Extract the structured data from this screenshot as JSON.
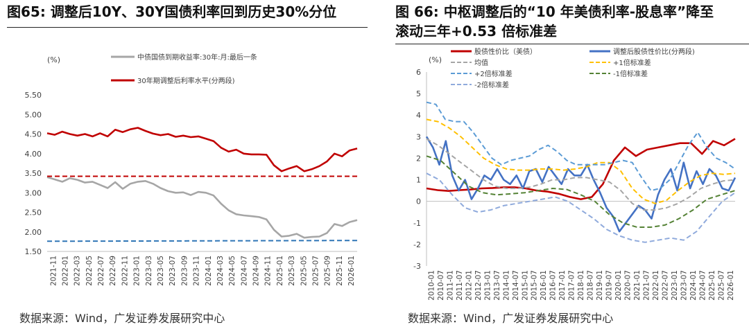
{
  "left": {
    "title": "图65:  调整后10Y、30Y国债利率回到历史30%分位",
    "source": "数据来源：Wind，广发证券发展研究中心"
  },
  "right": {
    "title_line1": "图 66:  中枢调整后的“10 年美债利率-股息率”降至",
    "title_line2": "滚动三年+0.53 倍标准差",
    "source": "数据来源：Wind，广发证券发展研究中心"
  },
  "colors": {
    "gray": "#a6a6a6",
    "red": "#c00000",
    "blue": "#4472c4",
    "dashBlue": "#2e75b6",
    "lightGray": "#a5a5a5",
    "orange": "#ffc000",
    "lightBlue": "#5b9bd5",
    "green": "#548235",
    "paleBlue": "#8faadc"
  },
  "chart_data": [
    {
      "type": "line",
      "unit": "(%)",
      "ylim": [
        1.5,
        5.5
      ],
      "yticks": [
        "1.50",
        "2.00",
        "2.50",
        "3.00",
        "3.50",
        "4.00",
        "4.50",
        "5.00",
        "5.50"
      ],
      "x_labels": [
        "2021-11",
        "2022-01",
        "2022-03",
        "2022-05",
        "2022-07",
        "2022-09",
        "2022-11",
        "2023-01",
        "2023-03",
        "2023-05",
        "2023-07",
        "2023-09",
        "2023-11",
        "2024-01",
        "2024-03",
        "2024-05",
        "2024-07",
        "2024-09",
        "2024-11",
        "2025-01",
        "2025-03",
        "2025-05",
        "2025-07",
        "2025-09",
        "2025-11",
        "2026-01"
      ],
      "series": [
        {
          "name": "中债国债到期收益率:30年:月:最后一条",
          "style": "solid",
          "color": "#a6a6a6",
          "values": [
            3.4,
            3.34,
            3.28,
            3.37,
            3.33,
            3.26,
            3.28,
            3.2,
            3.12,
            3.27,
            3.1,
            3.23,
            3.28,
            3.3,
            3.23,
            3.12,
            3.04,
            3.0,
            3.01,
            2.94,
            3.02,
            3.0,
            2.93,
            2.72,
            2.55,
            2.45,
            2.42,
            2.4,
            2.38,
            2.32,
            2.05,
            1.88,
            1.9,
            1.95,
            1.85,
            1.87,
            1.88,
            1.97,
            2.2,
            2.15,
            2.25,
            2.3
          ]
        },
        {
          "name": "30年期调整后利率水平(分两段)",
          "style": "solid",
          "color": "#c00000",
          "values": [
            4.52,
            4.48,
            4.56,
            4.5,
            4.46,
            4.5,
            4.44,
            4.52,
            4.44,
            4.61,
            4.55,
            4.62,
            4.66,
            4.58,
            4.51,
            4.47,
            4.5,
            4.43,
            4.46,
            4.42,
            4.44,
            4.38,
            4.32,
            4.15,
            4.05,
            4.1,
            4.0,
            3.98,
            3.98,
            3.97,
            3.7,
            3.55,
            3.62,
            3.68,
            3.55,
            3.6,
            3.68,
            3.8,
            4.0,
            3.93,
            4.08,
            4.13
          ]
        },
        {
          "name": "",
          "style": "dashed",
          "color": "#c00000",
          "values": [
            3.42,
            3.42
          ]
        },
        {
          "name": "",
          "style": "dashed",
          "color": "#2e75b6",
          "values": [
            1.76,
            1.78
          ]
        }
      ]
    },
    {
      "type": "line",
      "unit": "(%)",
      "ylim": [
        -3,
        6
      ],
      "yticks": [
        "-3",
        "-2",
        "-1",
        "0",
        "1",
        "2",
        "3",
        "4",
        "5",
        "6"
      ],
      "x_labels": [
        "2010-01",
        "2010-07",
        "2011-01",
        "2011-07",
        "2012-01",
        "2012-07",
        "2013-01",
        "2013-07",
        "2014-01",
        "2014-07",
        "2015-01",
        "2015-07",
        "2016-01",
        "2016-07",
        "2017-01",
        "2017-07",
        "2018-01",
        "2018-07",
        "2019-01",
        "2019-07",
        "2020-01",
        "2020-07",
        "2021-01",
        "2021-07",
        "2022-01",
        "2022-07",
        "2023-01",
        "2023-07",
        "2024-01",
        "2024-07",
        "2025-01",
        "2025-07",
        "2026-01"
      ],
      "series": [
        {
          "name": "股债性价比（美债）",
          "style": "solid",
          "color": "#c00000",
          "values": [
            0.6,
            0.52,
            0.48,
            0.52,
            0.55,
            0.6,
            0.62,
            0.65,
            0.65,
            0.6,
            0.5,
            0.45,
            0.35,
            0.2,
            0.1,
            0.2,
            0.8,
            1.9,
            2.5,
            2.1,
            2.4,
            2.5,
            2.6,
            2.7,
            2.7,
            2.2,
            2.8,
            2.6,
            2.9
          ]
        },
        {
          "name": "调整后股债性价比(分两段)",
          "style": "solid",
          "color": "#4472c4",
          "values": [
            3.0,
            2.5,
            1.7,
            2.8,
            1.2,
            0.5,
            1.0,
            0.1,
            0.6,
            1.2,
            1.0,
            1.5,
            1.0,
            0.8,
            1.2,
            0.6,
            1.4,
            1.5,
            0.9,
            1.6,
            1.2,
            0.8,
            1.5,
            1.2,
            1.2,
            1.7,
            1.0,
            0.4,
            -0.3,
            -0.7,
            -1.4,
            -1.0,
            -0.6,
            -0.2,
            -0.4,
            -0.8,
            0.3,
            1.0,
            1.5,
            0.5,
            1.8,
            0.6,
            1.4,
            0.8,
            1.5,
            1.2,
            0.6,
            0.5,
            1.1
          ]
        },
        {
          "name": "均值",
          "style": "dashed",
          "color": "#a5a5a5",
          "values": [
            2.9,
            2.6,
            2.2,
            1.8,
            1.4,
            1.0,
            0.7,
            0.6,
            0.6,
            0.65,
            0.8,
            1.0,
            1.0,
            1.1,
            1.1,
            1.0,
            0.9,
            0.5,
            -0.1,
            -0.4,
            -0.4,
            -0.3,
            -0.1,
            0.2,
            0.6,
            0.8,
            0.95,
            1.0
          ]
        },
        {
          "name": "+1倍标准差",
          "style": "dashed",
          "color": "#ffc000",
          "values": [
            3.8,
            3.7,
            3.4,
            3.0,
            2.5,
            2.0,
            1.7,
            1.5,
            1.45,
            1.45,
            1.5,
            1.5,
            1.45,
            1.5,
            1.6,
            1.8,
            1.8,
            1.4,
            0.6,
            0.1,
            -0.1,
            0.05,
            0.5,
            0.9,
            1.2,
            1.3,
            1.25,
            1.3
          ]
        },
        {
          "name": "+2倍标准差",
          "style": "dashed",
          "color": "#5b9bd5",
          "values": [
            4.6,
            4.5,
            3.8,
            3.7,
            3.7,
            3.2,
            2.6,
            2.0,
            1.7,
            1.9,
            2.0,
            2.1,
            2.4,
            2.6,
            2.3,
            1.9,
            1.7,
            1.7,
            1.7,
            1.7,
            1.8,
            1.9,
            1.8,
            1.1,
            0.5,
            0.6,
            1.0,
            1.8,
            2.6,
            3.2,
            2.5,
            2.0,
            1.8,
            1.5
          ]
        },
        {
          "name": "-1倍标准差",
          "style": "dashed",
          "color": "#548235",
          "values": [
            2.1,
            1.9,
            1.3,
            0.7,
            0.4,
            0.3,
            0.35,
            0.4,
            0.5,
            0.6,
            0.55,
            0.3,
            0.0,
            -0.6,
            -1.0,
            -1.2,
            -1.2,
            -1.1,
            -0.8,
            -0.4,
            0.1,
            0.3,
            0.5
          ]
        },
        {
          "name": "-2倍标准差",
          "style": "dashed",
          "color": "#8faadc",
          "values": [
            1.3,
            1.0,
            0.3,
            -0.3,
            -0.5,
            -0.4,
            -0.2,
            -0.1,
            0.0,
            0.1,
            0.2,
            0.0,
            -0.4,
            -0.8,
            -1.3,
            -1.6,
            -1.8,
            -1.9,
            -1.8,
            -1.7,
            -1.8,
            -1.4,
            -0.7,
            0.0,
            0.4
          ]
        }
      ]
    }
  ]
}
